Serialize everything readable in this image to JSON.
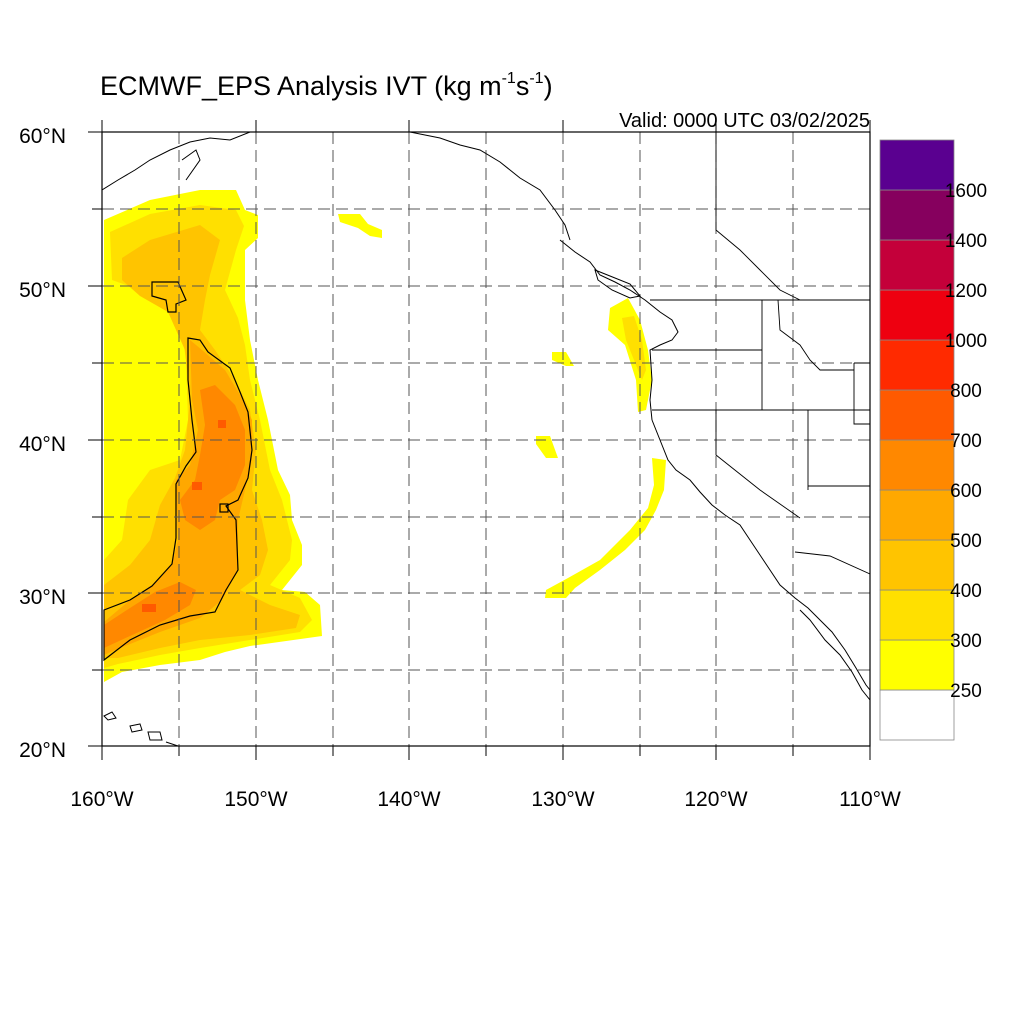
{
  "title": {
    "pre": "ECMWF_EPS Analysis IVT (kg m",
    "sup1": "-1",
    "mid": "s",
    "sup2": "-1",
    "post": ")"
  },
  "valid_label": "Valid: 0000 UTC 03/02/2025",
  "map": {
    "lon_min": -160,
    "lon_max": -110,
    "lat_min": 20,
    "lat_max": 60,
    "lon_labels": [
      "160°W",
      "150°W",
      "140°W",
      "130°W",
      "120°W",
      "110°W"
    ],
    "lat_labels": [
      "20°N",
      "30°N",
      "40°N",
      "50°N",
      "60°N"
    ]
  },
  "legend": {
    "labels": [
      "250",
      "300",
      "400",
      "500",
      "600",
      "700",
      "800",
      "1000",
      "1200",
      "1400",
      "1600"
    ],
    "colors": [
      "#ffffff",
      "#ffff00",
      "#ffe000",
      "#ffc400",
      "#ffa800",
      "#ff8800",
      "#ff5a00",
      "#ff2a00",
      "#ee0010",
      "#c4003a",
      "#86005e",
      "#5a0090"
    ]
  },
  "colors": {
    "ivt_250": "#ffff00",
    "ivt_300": "#ffe000",
    "ivt_400": "#ffc400",
    "ivt_500": "#ffa800",
    "ivt_600": "#ff8800",
    "ivt_700": "#ff5a00"
  }
}
